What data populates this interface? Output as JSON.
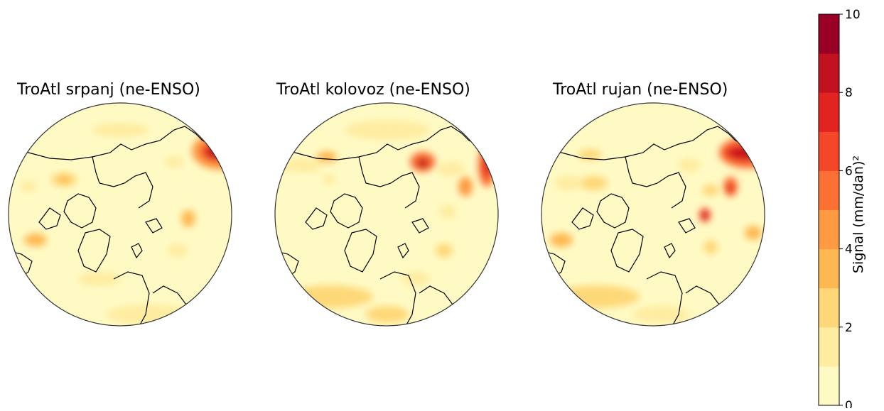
{
  "panels": [
    {
      "title": "TroAtl srpanj (ne-ENSO)"
    },
    {
      "title": "TroAtl kolovoz (ne-ENSO)"
    },
    {
      "title": "TroAtl rujan (ne-ENSO)"
    }
  ],
  "colorbar": {
    "label": "Signal (mm/dan)²",
    "min": 0,
    "max": 10,
    "ticks": [
      "0",
      "2",
      "4",
      "6",
      "8",
      "10"
    ],
    "levels": 10,
    "colors": [
      "#fffac4",
      "#feeca0",
      "#fed878",
      "#feb851",
      "#fd9a42",
      "#fc7034",
      "#f4472a",
      "#e1241f",
      "#c2111f",
      "#990026"
    ]
  }
}
